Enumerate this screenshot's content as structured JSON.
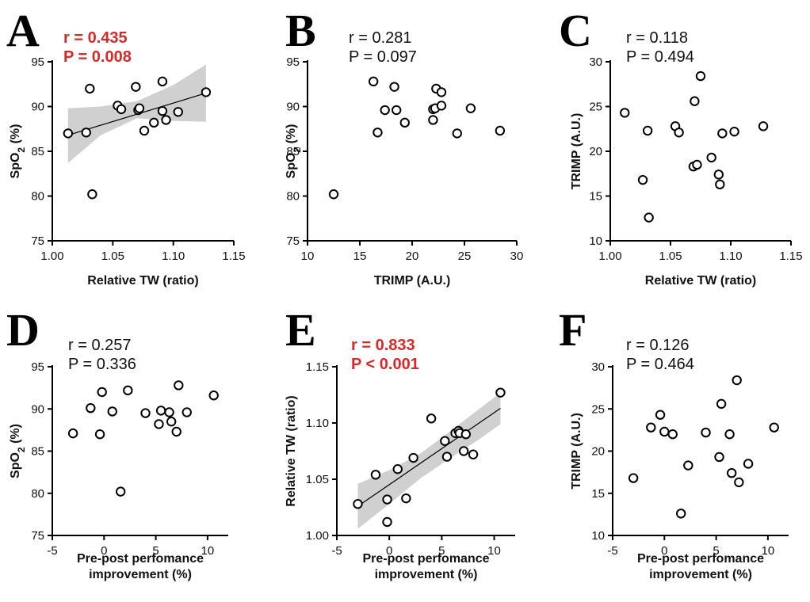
{
  "chart_data": [
    {
      "id": "A",
      "type": "scatter",
      "letter": "A",
      "stat_r": "r = 0.435",
      "stat_p": "P = 0.008",
      "significant": true,
      "xlabel": "Relative TW (ratio)",
      "ylabel_main": "SpO",
      "ylabel_sub": "2",
      "ylabel_unit": " (%)",
      "xlim": [
        1.0,
        1.15
      ],
      "ylim": [
        75,
        95
      ],
      "xticks": [
        1.0,
        1.05,
        1.1,
        1.15
      ],
      "xtick_labels": [
        "1.00",
        "1.05",
        "1.10",
        "1.15"
      ],
      "yticks": [
        75,
        80,
        85,
        90,
        95
      ],
      "ytick_labels": [
        "75",
        "80",
        "85",
        "90",
        "95"
      ],
      "x": [
        1.013,
        1.028,
        1.031,
        1.033,
        1.054,
        1.057,
        1.069,
        1.071,
        1.072,
        1.076,
        1.084,
        1.091,
        1.091,
        1.094,
        1.104,
        1.127
      ],
      "y": [
        87.0,
        87.1,
        92.0,
        80.2,
        90.1,
        89.7,
        92.2,
        89.6,
        89.8,
        87.3,
        88.2,
        92.8,
        89.5,
        88.5,
        89.4,
        91.6
      ],
      "fit": {
        "x": [
          1.013,
          1.127
        ],
        "y": [
          86.8,
          91.5
        ]
      },
      "band": {
        "x": [
          1.013,
          1.04,
          1.07,
          1.1,
          1.127
        ],
        "upper": [
          89.8,
          90.0,
          90.6,
          92.4,
          94.7
        ],
        "lower": [
          83.7,
          86.8,
          88.7,
          88.4,
          88.3
        ]
      }
    },
    {
      "id": "B",
      "type": "scatter",
      "letter": "B",
      "stat_r": "r = 0.281",
      "stat_p": "P = 0.097",
      "significant": false,
      "xlabel": "TRIMP (A.U.)",
      "ylabel_main": "SpO",
      "ylabel_sub": "2",
      "ylabel_unit": " (%)",
      "xlim": [
        10,
        30
      ],
      "ylim": [
        75,
        95
      ],
      "xticks": [
        10,
        15,
        20,
        25,
        30
      ],
      "xtick_labels": [
        "10",
        "15",
        "20",
        "25",
        "30"
      ],
      "yticks": [
        75,
        80,
        85,
        90,
        95
      ],
      "ytick_labels": [
        "75",
        "80",
        "85",
        "90",
        "95"
      ],
      "x": [
        12.5,
        16.3,
        16.7,
        17.4,
        18.3,
        18.5,
        19.3,
        22.0,
        22.0,
        22.2,
        22.3,
        22.8,
        22.8,
        24.3,
        25.6,
        28.4
      ],
      "y": [
        80.2,
        92.8,
        87.1,
        89.6,
        92.2,
        89.6,
        88.2,
        88.5,
        89.7,
        89.8,
        92.0,
        91.6,
        90.1,
        87.0,
        89.8,
        87.3
      ]
    },
    {
      "id": "C",
      "type": "scatter",
      "letter": "C",
      "stat_r": "r = 0.118",
      "stat_p": "P = 0.494",
      "significant": false,
      "xlabel": "Relative TW (ratio)",
      "ylabel_main": "TRIMP (A.U.)",
      "ylabel_sub": "",
      "ylabel_unit": "",
      "xlim": [
        1.0,
        1.15
      ],
      "ylim": [
        10,
        30
      ],
      "xticks": [
        1.0,
        1.05,
        1.1,
        1.15
      ],
      "xtick_labels": [
        "1.00",
        "1.05",
        "1.10",
        "1.15"
      ],
      "yticks": [
        10,
        15,
        20,
        25,
        30
      ],
      "ytick_labels": [
        "10",
        "15",
        "20",
        "25",
        "30"
      ],
      "x": [
        1.012,
        1.027,
        1.031,
        1.032,
        1.054,
        1.057,
        1.069,
        1.07,
        1.072,
        1.075,
        1.084,
        1.09,
        1.091,
        1.093,
        1.103,
        1.127
      ],
      "y": [
        24.3,
        16.8,
        22.3,
        12.6,
        22.8,
        22.1,
        18.3,
        25.6,
        18.5,
        28.4,
        19.3,
        17.4,
        16.3,
        22.0,
        22.2,
        22.8
      ]
    },
    {
      "id": "D",
      "type": "scatter",
      "letter": "D",
      "stat_r": "r = 0.257",
      "stat_p": "P = 0.336",
      "significant": false,
      "xlabel": "Pre-post perfomance",
      "xlabel2": "improvement (%)",
      "ylabel_main": "SpO",
      "ylabel_sub": "2",
      "ylabel_unit": " (%)",
      "xlim": [
        -5,
        12
      ],
      "ylim": [
        75,
        95
      ],
      "xticks": [
        -5,
        0,
        5,
        10
      ],
      "xtick_labels": [
        "-5",
        "0",
        "5",
        "10"
      ],
      "yticks": [
        75,
        80,
        85,
        90,
        95
      ],
      "ytick_labels": [
        "75",
        "80",
        "85",
        "90",
        "95"
      ],
      "x": [
        -3.0,
        -1.3,
        -0.4,
        -0.2,
        0.8,
        1.6,
        2.3,
        4.0,
        5.3,
        5.5,
        6.3,
        6.5,
        7.0,
        7.2,
        8.0,
        10.6
      ],
      "y": [
        87.1,
        90.1,
        87.0,
        92.0,
        89.7,
        80.2,
        92.2,
        89.5,
        88.2,
        89.8,
        89.6,
        88.5,
        87.3,
        92.8,
        89.6,
        91.6
      ]
    },
    {
      "id": "E",
      "type": "scatter",
      "letter": "E",
      "stat_r": "r = 0.833",
      "stat_p": "P < 0.001",
      "significant": true,
      "xlabel": "Pre-post perfomance",
      "xlabel2": "improvement (%)",
      "ylabel_main": "Relative TW (ratio)",
      "ylabel_sub": "",
      "ylabel_unit": "",
      "xlim": [
        -5,
        12
      ],
      "ylim": [
        1.0,
        1.15
      ],
      "xticks": [
        -5,
        0,
        5,
        10
      ],
      "xtick_labels": [
        "-5",
        "0",
        "5",
        "10"
      ],
      "yticks": [
        1.0,
        1.05,
        1.1,
        1.15
      ],
      "ytick_labels": [
        "1.00",
        "1.05",
        "1.10",
        "1.15"
      ],
      "x": [
        -3.0,
        -1.3,
        -0.2,
        -0.2,
        0.8,
        1.6,
        2.3,
        4.0,
        5.3,
        5.5,
        6.3,
        6.6,
        6.7,
        7.1,
        7.3,
        8.0,
        10.6
      ],
      "y": [
        1.028,
        1.054,
        1.032,
        1.012,
        1.059,
        1.033,
        1.069,
        1.104,
        1.084,
        1.07,
        1.091,
        1.093,
        1.091,
        1.075,
        1.09,
        1.072,
        1.127
      ],
      "fit": {
        "x": [
          -3.0,
          10.6
        ],
        "y": [
          1.026,
          1.113
        ]
      },
      "band": {
        "x": [
          -3.0,
          0.0,
          3.0,
          6.0,
          8.5,
          10.6
        ],
        "upper": [
          1.046,
          1.058,
          1.073,
          1.094,
          1.112,
          1.127
        ],
        "lower": [
          1.006,
          1.028,
          1.051,
          1.07,
          1.085,
          1.099
        ]
      }
    },
    {
      "id": "F",
      "type": "scatter",
      "letter": "F",
      "stat_r": "r = 0.126",
      "stat_p": "P = 0.464",
      "significant": false,
      "xlabel": "Pre-post perfomance",
      "xlabel2": "improvement (%)",
      "ylabel_main": "TRIMP (A.U.)",
      "ylabel_sub": "",
      "ylabel_unit": "",
      "xlim": [
        -5,
        12
      ],
      "ylim": [
        10,
        30
      ],
      "xticks": [
        -5,
        0,
        5,
        10
      ],
      "xtick_labels": [
        "-5",
        "0",
        "5",
        "10"
      ],
      "yticks": [
        10,
        15,
        20,
        25,
        30
      ],
      "ytick_labels": [
        "10",
        "15",
        "20",
        "25",
        "30"
      ],
      "x": [
        -3.0,
        -1.3,
        -0.4,
        0.0,
        0.8,
        1.6,
        2.3,
        4.0,
        5.3,
        5.5,
        6.3,
        6.5,
        7.0,
        7.2,
        8.1,
        10.6
      ],
      "y": [
        16.8,
        22.8,
        24.3,
        22.3,
        22.0,
        12.6,
        18.3,
        22.2,
        19.3,
        25.6,
        22.0,
        17.4,
        28.4,
        16.3,
        18.5,
        22.8
      ]
    }
  ]
}
